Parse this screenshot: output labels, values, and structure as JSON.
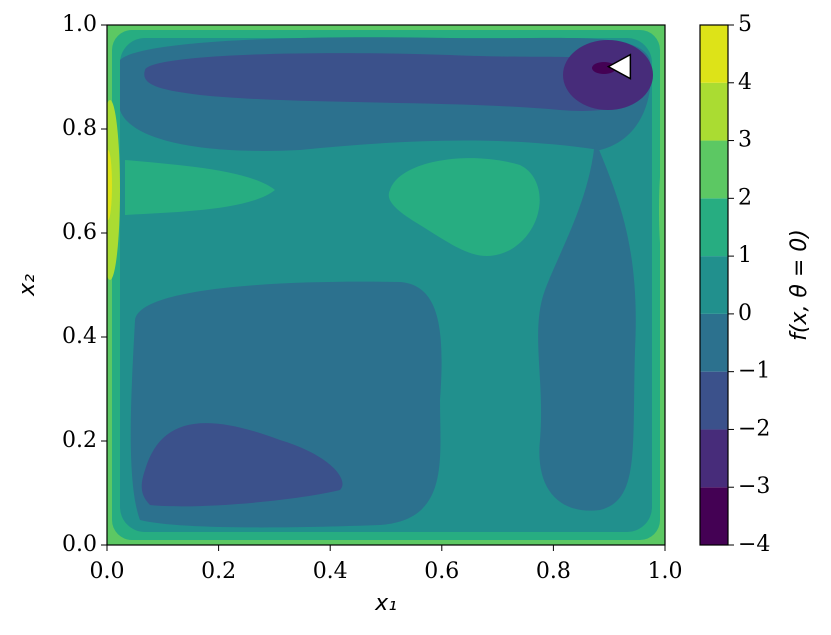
{
  "chart_data": {
    "type": "contour",
    "xlabel": "x₁",
    "ylabel": "x₂",
    "colorbar_label": "f(x, θ = 0)",
    "xlim": [
      0,
      1
    ],
    "ylim": [
      0,
      1
    ],
    "xticks": [
      {
        "value": 0,
        "label": "0.0"
      },
      {
        "value": 0.2,
        "label": "0.2"
      },
      {
        "value": 0.4,
        "label": "0.4"
      },
      {
        "value": 0.6,
        "label": "0.6"
      },
      {
        "value": 0.8,
        "label": "0.8"
      },
      {
        "value": 1,
        "label": "1.0"
      }
    ],
    "yticks": [
      {
        "value": 0,
        "label": "0.0"
      },
      {
        "value": 0.2,
        "label": "0.2"
      },
      {
        "value": 0.4,
        "label": "0.4"
      },
      {
        "value": 0.6,
        "label": "0.6"
      },
      {
        "value": 0.8,
        "label": "0.8"
      },
      {
        "value": 1,
        "label": "1.0"
      }
    ],
    "levels": [
      -4,
      -3,
      -2,
      -1,
      0,
      1,
      2,
      3,
      4,
      5
    ],
    "colorbar_ticks": [
      {
        "value": -4,
        "label": "−4"
      },
      {
        "value": -3,
        "label": "−3"
      },
      {
        "value": -2,
        "label": "−2"
      },
      {
        "value": -1,
        "label": "−1"
      },
      0,
      1,
      2,
      3,
      4,
      5
    ],
    "colors": [
      "#440154",
      "#472c7a",
      "#3b518b",
      "#2c718e",
      "#21908d",
      "#27ad81",
      "#5cc863",
      "#aadc32",
      "#dde318"
    ],
    "marker": {
      "x": 0.92,
      "y": 0.92,
      "color": "#ffffff"
    }
  }
}
